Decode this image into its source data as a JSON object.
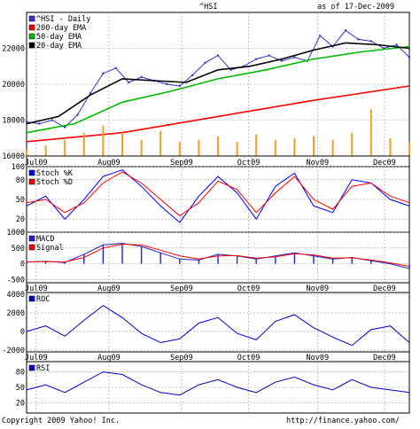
{
  "header": {
    "title": "^HSI",
    "asof": "as of 17-Dec-2009"
  },
  "footer": {
    "copyright": "Copyright 2009 Yahoo! Inc.",
    "url": "http://finance.yahoo.com/"
  },
  "colors": {
    "price": "#3333cc",
    "ema200": "#ff0000",
    "ema50": "#00bb00",
    "ema20": "#000000",
    "volume": "#f0a020",
    "stochK": "#0000ff",
    "stochD": "#ff0000",
    "macd": "#2222cc",
    "signal": "#ff0000",
    "roc": "#0000cc",
    "rsi": "#0000cc",
    "grid": "#999999"
  },
  "chart_data": [
    {
      "id": "price",
      "type": "line",
      "ylim": [
        16000,
        24000
      ],
      "yticks": [
        "16000",
        "18000",
        "20000",
        "22000"
      ],
      "ytick_values": [
        16000,
        18000,
        20000,
        22000
      ],
      "x_labels": [
        "Jul09",
        "Aug09",
        "Sep09",
        "Oct09",
        "Nov09",
        "Dec09"
      ],
      "x_label_pos": [
        0.025,
        0.215,
        0.405,
        0.58,
        0.76,
        0.935
      ],
      "legend": [
        {
          "name": "^HSI - Daily",
          "color": "#3333cc"
        },
        {
          "name": "200-day EMA",
          "color": "#ff0000"
        },
        {
          "name": "50-day EMA",
          "color": "#00bb00"
        },
        {
          "name": "20-day EMA",
          "color": "#000000"
        }
      ],
      "series": [
        {
          "name": "^HSI - Daily",
          "x": [
            0,
            4,
            8,
            12,
            16,
            20,
            24,
            28,
            32,
            36,
            40,
            44,
            48,
            52,
            56,
            60,
            64,
            68,
            72,
            76,
            80,
            84,
            88,
            92,
            96,
            100,
            104,
            108,
            112,
            116,
            120
          ],
          "values": [
            17900,
            17800,
            18000,
            17600,
            18300,
            19500,
            20600,
            20900,
            20100,
            20400,
            20200,
            20000,
            19900,
            20500,
            21200,
            21600,
            20800,
            21000,
            21400,
            21600,
            21300,
            21500,
            21300,
            22700,
            22100,
            23000,
            22500,
            22400,
            22000,
            22200,
            21500
          ]
        },
        {
          "name": "200-day EMA",
          "x": [
            0,
            30,
            60,
            90,
            120
          ],
          "values": [
            16800,
            17300,
            18200,
            19100,
            19900
          ]
        },
        {
          "name": "50-day EMA",
          "x": [
            0,
            15,
            30,
            45,
            60,
            75,
            90,
            105,
            120
          ],
          "values": [
            17300,
            17800,
            19000,
            19600,
            20300,
            20800,
            21400,
            21800,
            22100
          ]
        },
        {
          "name": "20-day EMA",
          "x": [
            0,
            10,
            20,
            30,
            40,
            50,
            60,
            70,
            80,
            90,
            100,
            110,
            120
          ],
          "values": [
            17800,
            18200,
            19400,
            20300,
            20200,
            20100,
            20800,
            21000,
            21400,
            21900,
            22300,
            22200,
            22000
          ]
        },
        {
          "name": "volume",
          "x": [
            0,
            6,
            12,
            18,
            24,
            30,
            36,
            42,
            48,
            54,
            60,
            66,
            72,
            78,
            84,
            90,
            96,
            102,
            108,
            114,
            120
          ],
          "values": [
            16400,
            16600,
            16900,
            17300,
            17700,
            17300,
            16900,
            17400,
            16800,
            16900,
            17100,
            16800,
            17200,
            16900,
            17000,
            17100,
            16900,
            17300,
            18600,
            17000,
            16800
          ]
        }
      ]
    },
    {
      "id": "stoch",
      "type": "line",
      "ylim": [
        0,
        100
      ],
      "yticks": [
        "0",
        "20",
        "50",
        "80",
        "100"
      ],
      "ytick_values": [
        0,
        20,
        50,
        80,
        100
      ],
      "legend": [
        {
          "name": "Stoch %K",
          "color": "#0000ff"
        },
        {
          "name": "Stoch %D",
          "color": "#ff0000"
        }
      ],
      "series": [
        {
          "name": "Stoch %K",
          "x": [
            0,
            6,
            12,
            18,
            24,
            30,
            36,
            42,
            48,
            54,
            60,
            66,
            72,
            78,
            84,
            90,
            96,
            102,
            108,
            114,
            120
          ],
          "values": [
            40,
            55,
            20,
            50,
            85,
            95,
            70,
            40,
            15,
            55,
            85,
            60,
            20,
            70,
            90,
            40,
            30,
            80,
            75,
            50,
            40
          ]
        },
        {
          "name": "Stoch %D",
          "x": [
            0,
            6,
            12,
            18,
            24,
            30,
            36,
            42,
            48,
            54,
            60,
            66,
            72,
            78,
            84,
            90,
            96,
            102,
            108,
            114,
            120
          ],
          "values": [
            45,
            50,
            30,
            45,
            75,
            92,
            75,
            50,
            25,
            45,
            78,
            65,
            30,
            60,
            85,
            50,
            35,
            70,
            75,
            55,
            45
          ]
        }
      ]
    },
    {
      "id": "macd",
      "type": "line",
      "ylim": [
        -600,
        1000
      ],
      "yticks": [
        "-500",
        "0",
        "500",
        "1000"
      ],
      "ytick_values": [
        -500,
        0,
        500,
        1000
      ],
      "legend": [
        {
          "name": "MACD",
          "color": "#2222cc"
        },
        {
          "name": "Signal",
          "color": "#ff0000"
        }
      ],
      "series": [
        {
          "name": "MACD",
          "x": [
            0,
            6,
            12,
            18,
            24,
            30,
            36,
            42,
            48,
            54,
            60,
            66,
            72,
            78,
            84,
            90,
            96,
            102,
            108,
            114,
            120
          ],
          "values": [
            50,
            80,
            40,
            300,
            600,
            650,
            550,
            350,
            150,
            120,
            300,
            250,
            150,
            250,
            350,
            250,
            150,
            200,
            100,
            0,
            -150
          ]
        },
        {
          "name": "Signal",
          "x": [
            0,
            6,
            12,
            18,
            24,
            30,
            36,
            42,
            48,
            54,
            60,
            66,
            72,
            78,
            84,
            90,
            96,
            102,
            108,
            114,
            120
          ],
          "values": [
            60,
            70,
            60,
            200,
            500,
            620,
            600,
            430,
            250,
            150,
            250,
            260,
            180,
            220,
            320,
            280,
            180,
            190,
            120,
            30,
            -80
          ]
        }
      ]
    },
    {
      "id": "roc",
      "type": "line",
      "ylim": [
        -2200,
        4200
      ],
      "yticks": [
        "-2000",
        "0",
        "2000",
        "4000"
      ],
      "ytick_values": [
        -2000,
        0,
        2000,
        4000
      ],
      "legend": [
        {
          "name": "ROC",
          "color": "#0000cc"
        }
      ],
      "series": [
        {
          "name": "ROC",
          "x": [
            0,
            6,
            12,
            18,
            24,
            30,
            36,
            42,
            48,
            54,
            60,
            66,
            72,
            78,
            84,
            90,
            96,
            102,
            108,
            114,
            120
          ],
          "values": [
            0,
            600,
            -500,
            1200,
            2800,
            1500,
            -200,
            -1200,
            -800,
            900,
            1500,
            -200,
            -900,
            1100,
            1800,
            400,
            -600,
            -1500,
            200,
            600,
            -1200
          ]
        }
      ]
    },
    {
      "id": "rsi",
      "type": "line",
      "ylim": [
        0,
        100
      ],
      "yticks": [
        "20",
        "50",
        "80"
      ],
      "ytick_values": [
        20,
        50,
        80
      ],
      "legend": [
        {
          "name": "RSI",
          "color": "#0000cc"
        }
      ],
      "series": [
        {
          "name": "RSI",
          "x": [
            0,
            6,
            12,
            18,
            24,
            30,
            36,
            42,
            48,
            54,
            60,
            66,
            72,
            78,
            84,
            90,
            96,
            102,
            108,
            114,
            120
          ],
          "values": [
            45,
            55,
            40,
            60,
            80,
            75,
            55,
            40,
            35,
            55,
            65,
            50,
            40,
            60,
            70,
            55,
            45,
            65,
            50,
            45,
            40
          ]
        }
      ]
    }
  ]
}
